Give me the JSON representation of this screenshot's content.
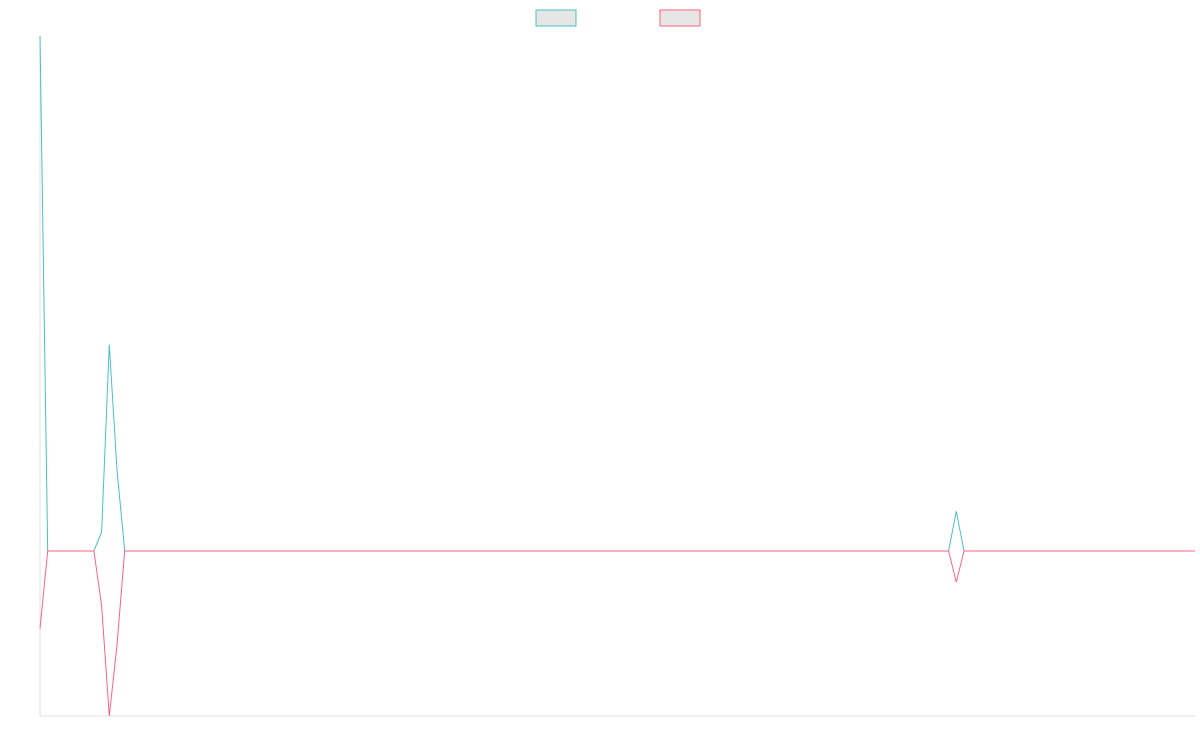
{
  "chart_data": {
    "type": "line",
    "categories": [
      null,
      null,
      null,
      null,
      null,
      null,
      null,
      null,
      null,
      null,
      null,
      null,
      null,
      null,
      null,
      null,
      null,
      null,
      null,
      null,
      null,
      null,
      null,
      null,
      null,
      null,
      null,
      null,
      null,
      null,
      null,
      null,
      null,
      null,
      null,
      null,
      null,
      null,
      null,
      null,
      null,
      null,
      null,
      null,
      null,
      null,
      null,
      null,
      null,
      null,
      null,
      null,
      null,
      null,
      null,
      null,
      null,
      null,
      null,
      null,
      null,
      null,
      null,
      null,
      null,
      null,
      null,
      null,
      null,
      null,
      null,
      null,
      null,
      null,
      null,
      null,
      null,
      null,
      null,
      null,
      null,
      null,
      null,
      null,
      null,
      null,
      null,
      null,
      null,
      null,
      null,
      null,
      null,
      null,
      null,
      null,
      null,
      null,
      null,
      null,
      null,
      null,
      null,
      null,
      null,
      null,
      null,
      null,
      null,
      null,
      null,
      null,
      null,
      null,
      null,
      null,
      null,
      null,
      null,
      null,
      null,
      null,
      null,
      null,
      null,
      null,
      null,
      null,
      null,
      null,
      null,
      null,
      null,
      null,
      null,
      null,
      null,
      null,
      null,
      null,
      null,
      null,
      null,
      null,
      null,
      null,
      null,
      null,
      null,
      null,
      null
    ],
    "series": [
      {
        "color": "#4bc0c0",
        "values": [
          3.12,
          0,
          0,
          0,
          0,
          0,
          0,
          0,
          0.115,
          1.25,
          0.49,
          0,
          0,
          0,
          0,
          0,
          0,
          0,
          0,
          0,
          0,
          0,
          0,
          0,
          0,
          0,
          0,
          0,
          0,
          0,
          0,
          0,
          0,
          0,
          0,
          0,
          0,
          0,
          0,
          0,
          0,
          0,
          0,
          0,
          0,
          0,
          0,
          0,
          0,
          0,
          0,
          0,
          0,
          0,
          0,
          0,
          0,
          0,
          0,
          0,
          0,
          0,
          0,
          0,
          0,
          0,
          0,
          0,
          0,
          0,
          0,
          0,
          0,
          0,
          0,
          0,
          0,
          0,
          0,
          0,
          0,
          0,
          0,
          0,
          0,
          0,
          0,
          0,
          0,
          0,
          0,
          0,
          0,
          0,
          0,
          0,
          0,
          0,
          0,
          0,
          0,
          0,
          0,
          0,
          0,
          0,
          0,
          0,
          0,
          0,
          0,
          0,
          0,
          0,
          0,
          0,
          0,
          0,
          0,
          0.24,
          0,
          0,
          0,
          0,
          0,
          0,
          0,
          0,
          0,
          0,
          0,
          0,
          0,
          0,
          0,
          0,
          0,
          0,
          0,
          0,
          0,
          0,
          0,
          0,
          0,
          0,
          0,
          0,
          0,
          0,
          0
        ]
      },
      {
        "color": "#ff6384",
        "values": [
          -0.47,
          0,
          0,
          0,
          0,
          0,
          0,
          0,
          -0.33,
          -1,
          -0.57,
          0,
          0,
          0,
          0,
          0,
          0,
          0,
          0,
          0,
          0,
          0,
          0,
          0,
          0,
          0,
          0,
          0,
          0,
          0,
          0,
          0,
          0,
          0,
          0,
          0,
          0,
          0,
          0,
          0,
          0,
          0,
          0,
          0,
          0,
          0,
          0,
          0,
          0,
          0,
          0,
          0,
          0,
          0,
          0,
          0,
          0,
          0,
          0,
          0,
          0,
          0,
          0,
          0,
          0,
          0,
          0,
          0,
          0,
          0,
          0,
          0,
          0,
          0,
          0,
          0,
          0,
          0,
          0,
          0,
          0,
          0,
          0,
          0,
          0,
          0,
          0,
          0,
          0,
          0,
          0,
          0,
          0,
          0,
          0,
          0,
          0,
          0,
          0,
          0,
          0,
          0,
          0,
          0,
          0,
          0,
          0,
          0,
          0,
          0,
          0,
          0,
          0,
          0,
          0,
          0,
          0,
          0,
          0,
          -0.19,
          0,
          0,
          0,
          0,
          0,
          0,
          0,
          0,
          0,
          0,
          0,
          0,
          0,
          0,
          0,
          0,
          0,
          0,
          0,
          0,
          0,
          0,
          0,
          0,
          0,
          0,
          0,
          0,
          0,
          0,
          0
        ]
      }
    ],
    "ylim": [
      -1,
      3.12
    ],
    "grid": false
  }
}
